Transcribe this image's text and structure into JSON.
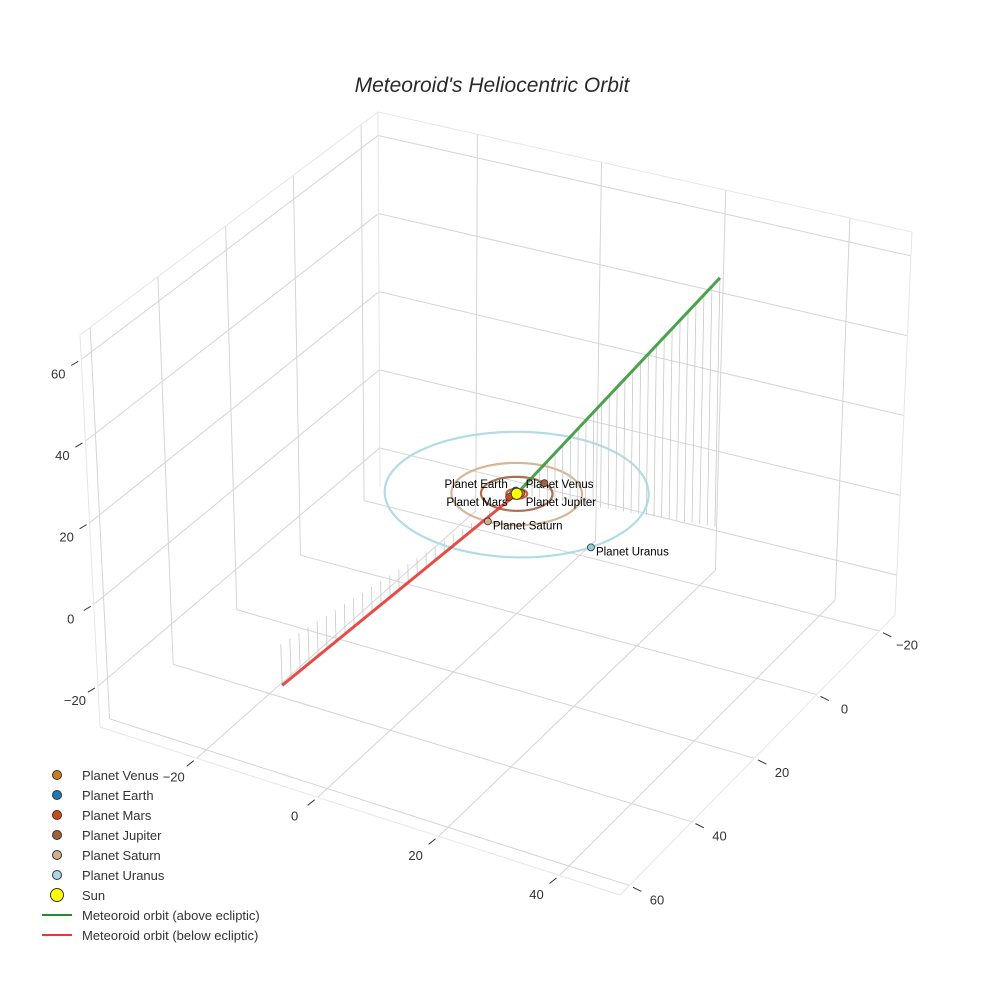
{
  "title": "Meteoroid's Heliocentric Orbit",
  "chart_data": {
    "type": "scatter3d",
    "title": "Meteoroid's Heliocentric Orbit",
    "axes": {
      "x": {
        "range": [
          -36,
          50
        ],
        "ticks": [
          -20,
          0,
          20,
          40
        ],
        "tick_labels": [
          "−20",
          "0",
          "20",
          "40"
        ]
      },
      "y": {
        "range": [
          -25,
          63
        ],
        "ticks": [
          -20,
          0,
          20,
          40,
          60
        ],
        "tick_labels": [
          "−20",
          "0",
          "20",
          "40",
          "60"
        ]
      },
      "z": {
        "range": [
          -30,
          66
        ],
        "ticks": [
          -20,
          0,
          20,
          40,
          60
        ],
        "tick_labels": [
          "−20",
          "0",
          "20",
          "40",
          "60"
        ]
      }
    },
    "orbits": [
      {
        "name": "Venus",
        "radius": 0.72,
        "color": "#c87f1a"
      },
      {
        "name": "Earth",
        "radius": 1.0,
        "color": "#1f77b4"
      },
      {
        "name": "Mars",
        "radius": 1.52,
        "color": "#cc4a1a"
      },
      {
        "name": "Jupiter",
        "radius": 5.2,
        "color": "#a0613f"
      },
      {
        "name": "Saturn",
        "radius": 9.5,
        "color": "#d2ae8c"
      },
      {
        "name": "Uranus",
        "radius": 19.2,
        "color": "#a8d8e3"
      }
    ],
    "planets": [
      {
        "name": "Planet Venus",
        "x": 0.5,
        "y": -0.5,
        "z": 0,
        "color": "#c87f1a"
      },
      {
        "name": "Planet Earth",
        "x": -0.6,
        "y": -0.8,
        "z": 0,
        "color": "#1f77b4"
      },
      {
        "name": "Planet Mars",
        "x": -0.5,
        "y": 1.4,
        "z": 0,
        "color": "#cc4a1a"
      },
      {
        "name": "Planet Jupiter",
        "x": 2.0,
        "y": -4.8,
        "z": 0,
        "color": "#a0613f"
      },
      {
        "name": "Planet Saturn",
        "x": 0.3,
        "y": 9.5,
        "z": 0,
        "color": "#d2ae8c"
      },
      {
        "name": "Planet Uranus",
        "x": 17.0,
        "y": 9.0,
        "z": 0,
        "color": "#8fcbe0"
      }
    ],
    "sun": {
      "name": "Sun",
      "x": 0,
      "y": 0,
      "z": 0,
      "color": "#ffff00"
    },
    "meteoroid": {
      "above": {
        "name": "Meteoroid orbit (above ecliptic)",
        "color": "#3a9a3a",
        "start": [
          0,
          0,
          0
        ],
        "end": [
          30,
          -5,
          62
        ]
      },
      "below": {
        "name": "Meteoroid orbit (below ecliptic)",
        "color": "#e53935",
        "start": [
          0,
          0,
          0
        ],
        "end": [
          -8,
          58,
          -10
        ]
      }
    }
  },
  "legend": [
    {
      "label": "Planet Venus",
      "color": "#c87f1a",
      "kind": "dot"
    },
    {
      "label": "Planet Earth",
      "color": "#1f77b4",
      "kind": "dot"
    },
    {
      "label": "Planet Mars",
      "color": "#cc4a1a",
      "kind": "dot"
    },
    {
      "label": "Planet Jupiter",
      "color": "#a0613f",
      "kind": "dot"
    },
    {
      "label": "Planet Saturn",
      "color": "#d2ae8c",
      "kind": "dot"
    },
    {
      "label": "Planet Uranus",
      "color": "#a8d8e3",
      "kind": "dot"
    },
    {
      "label": "Sun",
      "color": "#ffff00",
      "kind": "big"
    },
    {
      "label": "Meteoroid orbit (above ecliptic)",
      "color": "#2a8a2a",
      "kind": "line"
    },
    {
      "label": "Meteoroid orbit (below ecliptic)",
      "color": "#e53935",
      "kind": "line"
    }
  ]
}
